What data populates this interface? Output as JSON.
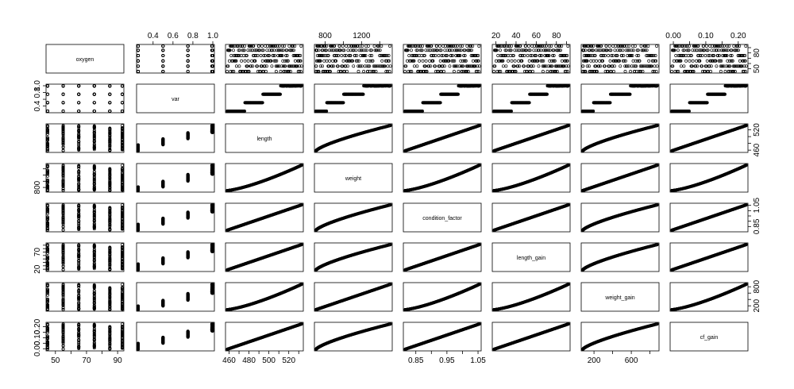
{
  "chart_data": {
    "type": "scatter",
    "variables": [
      "oxygen",
      "var",
      "length",
      "weight",
      "condition_factor",
      "length_gain",
      "weight_gain",
      "cf_gain"
    ],
    "ranges": {
      "oxygen": [
        45,
        93
      ],
      "var": [
        0.25,
        1.0
      ],
      "length": [
        458,
        533
      ],
      "weight": [
        700,
        1520
      ],
      "condition_factor": [
        0.815,
        1.055
      ],
      "length_gain": [
        18,
        92
      ],
      "weight_gain": [
        80,
        880
      ],
      "cf_gain": [
        -0.005,
        0.225
      ]
    },
    "ticks": {
      "oxygen": {
        "side": "bottom",
        "values": [
          50,
          60,
          70,
          80,
          90
        ],
        "labels": [
          "50",
          "",
          "70",
          "",
          "90"
        ]
      },
      "var": {
        "side": "left",
        "values": [
          0.4,
          0.6,
          0.8,
          1.0
        ],
        "labels": [
          "0.4",
          "",
          "",
          "1.0"
        ]
      },
      "length": {
        "side": "right",
        "values": [
          460,
          480,
          500,
          520
        ],
        "labels": [
          "460",
          "",
          "",
          "520"
        ]
      },
      "weight": {
        "side": "left",
        "values": [
          800,
          1000,
          1200,
          1400
        ],
        "labels": [
          "800",
          "",
          "",
          ""
        ]
      },
      "condition_factor": {
        "side": "right",
        "values": [
          0.85,
          0.9,
          0.95,
          1.0,
          1.05
        ],
        "labels": [
          "0.85",
          "",
          "",
          "",
          "1.05"
        ]
      },
      "length_gain": {
        "side": "left",
        "values": [
          20,
          30,
          40,
          50,
          60,
          70,
          80,
          90
        ],
        "labels": [
          "20",
          "",
          "",
          "",
          "",
          "70",
          "",
          ""
        ]
      },
      "weight_gain": {
        "side": "right",
        "values": [
          200,
          400,
          600,
          800
        ],
        "labels": [
          "200",
          "",
          "",
          "800"
        ]
      },
      "cf_gain": {
        "side": "left",
        "values": [
          0.0,
          0.05,
          0.1,
          0.15,
          0.2
        ],
        "labels": [
          "0.00",
          "",
          "0.10",
          "",
          "0.20"
        ]
      }
    },
    "top_axes": {
      "var": {
        "values": [
          0.4,
          0.6,
          0.8,
          1.0
        ],
        "labels": [
          "0.4",
          "0.6",
          "0.8",
          "1.0"
        ]
      },
      "weight": {
        "values": [
          800,
          1000,
          1200,
          1400
        ],
        "labels": [
          "800",
          "",
          "1200",
          ""
        ]
      },
      "length_gain": {
        "values": [
          20,
          30,
          40,
          50,
          60,
          70,
          80,
          90
        ],
        "labels": [
          "20",
          "",
          "40",
          "",
          "60",
          "",
          "80",
          ""
        ]
      },
      "cf_gain": {
        "values": [
          0.0,
          0.05,
          0.1,
          0.15,
          0.2
        ],
        "labels": [
          "0.00",
          "",
          "0.10",
          "",
          "0.20"
        ]
      }
    },
    "right_axes": {
      "oxygen": {
        "values": [
          50,
          60,
          70,
          80,
          90
        ],
        "labels": [
          "50",
          "",
          "",
          "80",
          ""
        ]
      },
      "length": {
        "values": [
          460,
          480,
          500,
          520
        ],
        "labels": [
          "460",
          "",
          "",
          "520"
        ]
      },
      "condition_factor": {
        "values": [
          0.85,
          0.9,
          0.95,
          1.0,
          1.05
        ],
        "labels": [
          "0.85",
          "",
          "",
          "",
          "1.05"
        ]
      },
      "weight_gain": {
        "values": [
          200,
          400,
          600,
          800
        ],
        "labels": [
          "200",
          "",
          "",
          "800"
        ]
      }
    },
    "bottom_axes": {
      "oxygen": {
        "values": [
          50,
          60,
          70,
          80,
          90
        ],
        "labels": [
          "50",
          "",
          "70",
          "",
          "90"
        ]
      },
      "length": {
        "values": [
          460,
          470,
          480,
          490,
          500,
          510,
          520,
          530
        ],
        "labels": [
          "460",
          "",
          "480",
          "",
          "500",
          "",
          "520",
          ""
        ]
      },
      "condition_factor": {
        "values": [
          0.85,
          0.9,
          0.95,
          1.0,
          1.05
        ],
        "labels": [
          "0.85",
          "",
          "0.95",
          "",
          "1.05"
        ]
      },
      "weight_gain": {
        "values": [
          200,
          400,
          600,
          800
        ],
        "labels": [
          "200",
          "",
          "600",
          ""
        ]
      }
    },
    "left_axes": {
      "var": {
        "values": [
          0.4,
          0.6,
          0.8,
          1.0
        ],
        "labels": [
          "0.4",
          "",
          "0.8",
          "1.0"
        ]
      },
      "weight": {
        "values": [
          800,
          1000,
          1200,
          1400
        ],
        "labels": [
          "800",
          "",
          "",
          ""
        ]
      },
      "length_gain": {
        "values": [
          20,
          30,
          40,
          50,
          60,
          70,
          80,
          90
        ],
        "labels": [
          "20",
          "",
          "",
          "",
          "",
          "70",
          "",
          ""
        ]
      },
      "cf_gain": {
        "values": [
          0.0,
          0.05,
          0.1,
          0.15,
          0.2
        ],
        "labels": [
          "0.00",
          "",
          "0.10",
          "",
          "0.20"
        ]
      }
    },
    "oxygen_levels": [
      45,
      55,
      65,
      75,
      85,
      93
    ],
    "var_levels": [
      0.25,
      0.5,
      0.75,
      1.0
    ],
    "relationships": {
      "length": {
        "start": 458,
        "end": 533
      },
      "weight": {
        "start": 700,
        "end": 1520
      },
      "condition_factor": {
        "start": 0.815,
        "end": 1.055
      },
      "length_gain": {
        "start": 18,
        "end": 92
      },
      "weight_gain": {
        "start": 80,
        "end": 880
      },
      "cf_gain": {
        "start": -0.005,
        "end": 0.225
      }
    },
    "grid": false,
    "legend": "none"
  }
}
